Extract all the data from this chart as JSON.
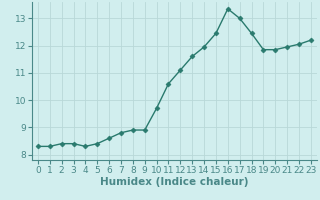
{
  "x": [
    0,
    1,
    2,
    3,
    4,
    5,
    6,
    7,
    8,
    9,
    10,
    11,
    12,
    13,
    14,
    15,
    16,
    17,
    18,
    19,
    20,
    21,
    22,
    23
  ],
  "y": [
    8.3,
    8.3,
    8.4,
    8.4,
    8.3,
    8.4,
    8.6,
    8.8,
    8.9,
    8.9,
    9.7,
    10.6,
    11.1,
    11.6,
    11.95,
    12.45,
    13.35,
    13.0,
    12.45,
    11.85,
    11.85,
    11.95,
    12.05,
    12.2
  ],
  "line_color": "#2a7a6e",
  "marker": "D",
  "marker_size": 2.5,
  "bg_color": "#d1eeee",
  "grid_color": "#b8d8d8",
  "xlabel": "Humidex (Indice chaleur)",
  "ylim": [
    7.8,
    13.6
  ],
  "xlim": [
    -0.5,
    23.5
  ],
  "yticks": [
    8,
    9,
    10,
    11,
    12,
    13
  ],
  "xticks": [
    0,
    1,
    2,
    3,
    4,
    5,
    6,
    7,
    8,
    9,
    10,
    11,
    12,
    13,
    14,
    15,
    16,
    17,
    18,
    19,
    20,
    21,
    22,
    23
  ],
  "tick_fontsize": 6.5,
  "xlabel_fontsize": 7.5,
  "line_width": 1.0,
  "spine_color": "#4a8888"
}
